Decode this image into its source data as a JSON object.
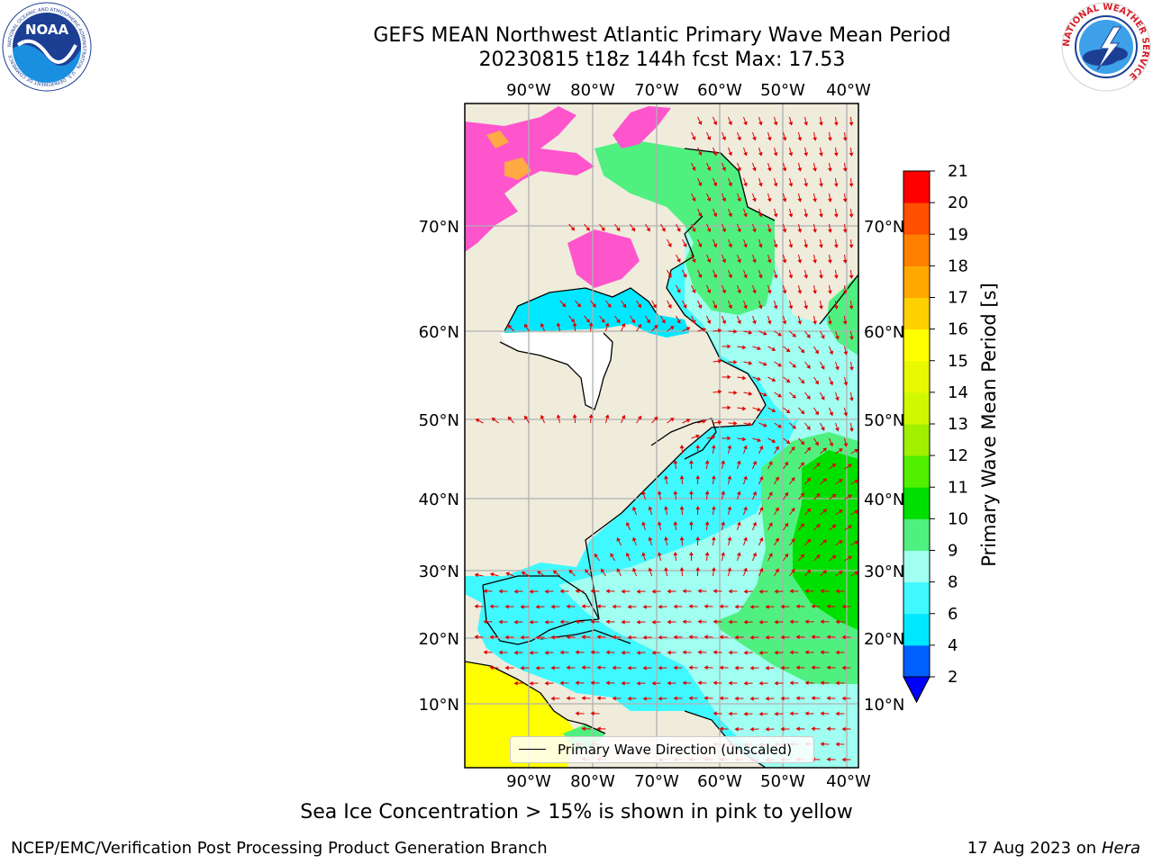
{
  "title": {
    "line1": "GEFS MEAN Northwest Atlantic Primary Wave Mean Period",
    "line2": "20230815 t18z 144h fcst   Max: 17.53"
  },
  "logos": {
    "left_text": "NOAA",
    "left_ring_text": "NATIONAL OCEANIC AND ATMOSPHERIC ADMINISTRATION · U.S. DEPARTMENT OF COMMERCE",
    "right_ring_text": "NATIONAL WEATHER SERVICE"
  },
  "map": {
    "lon_labels": [
      "90°W",
      "80°W",
      "70°W",
      "60°W",
      "50°W",
      "40°W"
    ],
    "lat_labels": [
      "70°N",
      "60°N",
      "50°N",
      "40°N",
      "30°N",
      "20°N",
      "10°N"
    ],
    "legend_label": "Primary Wave Direction (unscaled)"
  },
  "colorbar": {
    "label": "Primary Wave Mean Period [s]",
    "ticks": [
      "2",
      "4",
      "6",
      "8",
      "9",
      "10",
      "11",
      "12",
      "13",
      "14",
      "15",
      "16",
      "17",
      "18",
      "19",
      "20",
      "21"
    ],
    "colors": [
      "#0060ff",
      "#00e8ff",
      "#40f8ff",
      "#a0fff0",
      "#50f080",
      "#00e000",
      "#50f000",
      "#a0f000",
      "#d0f800",
      "#e8f800",
      "#ffff00",
      "#ffd000",
      "#ffa800",
      "#ff8000",
      "#ff5000",
      "#ff0000"
    ],
    "under_color": "#0000ff"
  },
  "caption": "Sea Ice Concentration > 15% is shown in pink to yellow",
  "credit_left": "NCEP/EMC/Verification Post Processing Product Generation Branch",
  "credit_date": "17 Aug 2023 on",
  "credit_machine": "Hera"
}
